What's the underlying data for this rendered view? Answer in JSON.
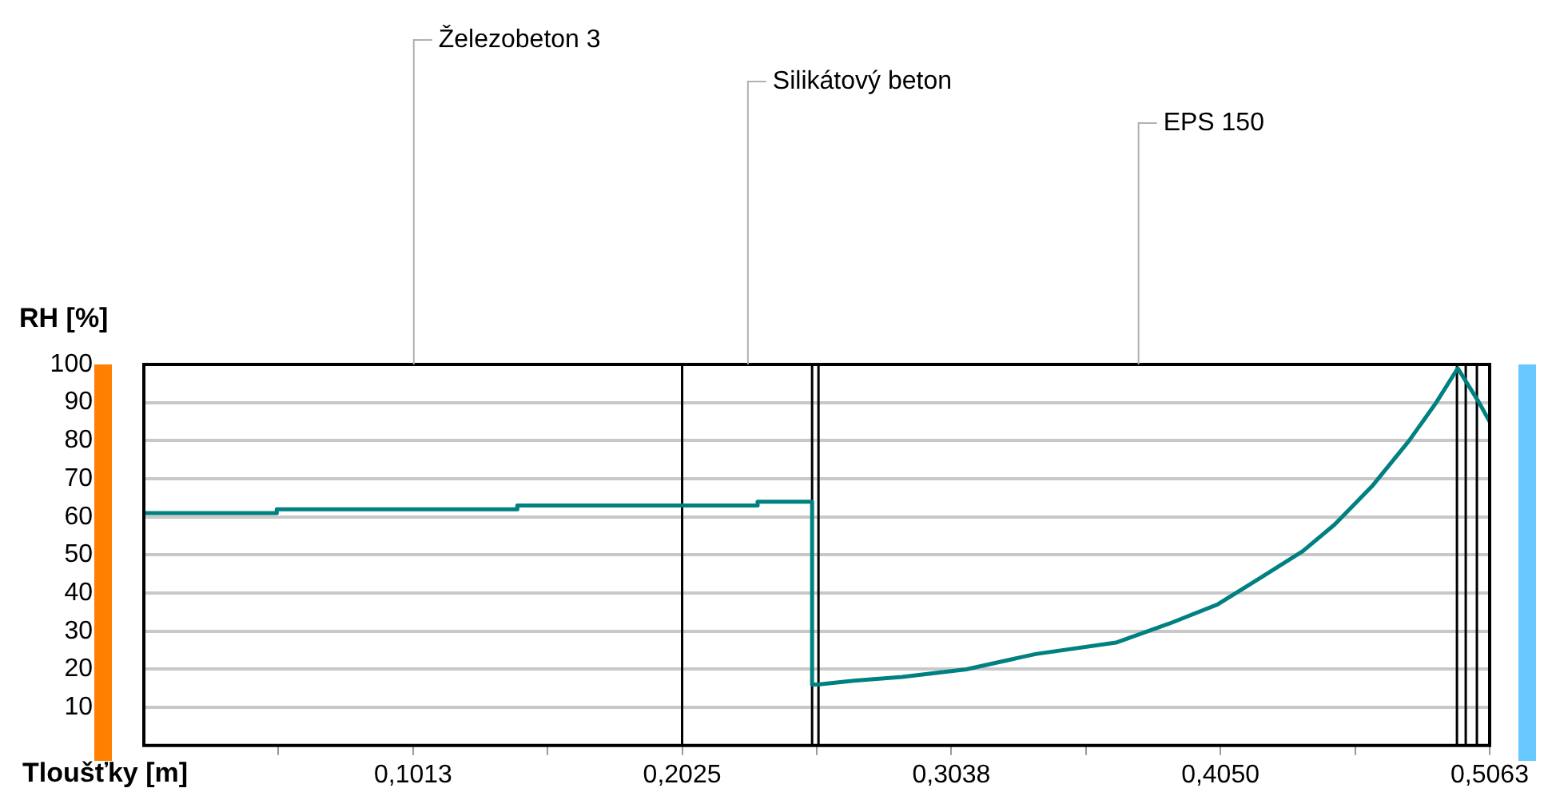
{
  "chart_data": {
    "type": "line",
    "xlabel": "Tloušťky [m]",
    "ylabel": "RH [%]",
    "series": [
      {
        "color": "#008080",
        "x": [
          0,
          0.05,
          0.05,
          0.1405,
          0.1405,
          0.2309,
          0.2309,
          0.2514,
          0.2514,
          0.2536,
          0.267,
          0.2853,
          0.3094,
          0.3355,
          0.3657,
          0.3858,
          0.4039,
          0.42,
          0.436,
          0.448,
          0.462,
          0.476,
          0.4862,
          0.4943,
          0.5023,
          0.5063
        ],
        "values": [
          61,
          61,
          62,
          62,
          63,
          63,
          64,
          64,
          16,
          16,
          17,
          18,
          20,
          24,
          27,
          32,
          37,
          44,
          51,
          58,
          68,
          80,
          90,
          99,
          90,
          85
        ]
      }
    ],
    "xlim": [
      0,
      0.5063
    ],
    "xticks": [
      {
        "value": 0.0506,
        "label": null
      },
      {
        "value": 0.1013,
        "label": "0,1013"
      },
      {
        "value": 0.1519,
        "label": null
      },
      {
        "value": 0.2025,
        "label": "0,2025"
      },
      {
        "value": 0.2532,
        "label": null
      },
      {
        "value": 0.3038,
        "label": "0,3038"
      },
      {
        "value": 0.3544,
        "label": null
      },
      {
        "value": 0.405,
        "label": "0,4050"
      },
      {
        "value": 0.4557,
        "label": null
      },
      {
        "value": 0.5063,
        "label": "0,5063"
      }
    ],
    "ylim": [
      0,
      100
    ],
    "yticks": [
      10,
      20,
      30,
      40,
      50,
      60,
      70,
      80,
      90,
      100
    ],
    "grid": "y",
    "ref_lines": [
      {
        "axis": "x",
        "value": 0.2025,
        "color": "#000000"
      },
      {
        "axis": "x",
        "value": 0.2514,
        "color": "#000000"
      },
      {
        "axis": "x",
        "value": 0.2538,
        "color": "#000000"
      },
      {
        "axis": "x",
        "value": 0.494,
        "color": "#000000"
      },
      {
        "axis": "x",
        "value": 0.4973,
        "color": "#000000"
      },
      {
        "axis": "x",
        "value": 0.5015,
        "color": "#000000"
      }
    ],
    "annotations": [
      "Železobeton 3",
      "Silikátový beton",
      "EPS 150"
    ]
  }
}
